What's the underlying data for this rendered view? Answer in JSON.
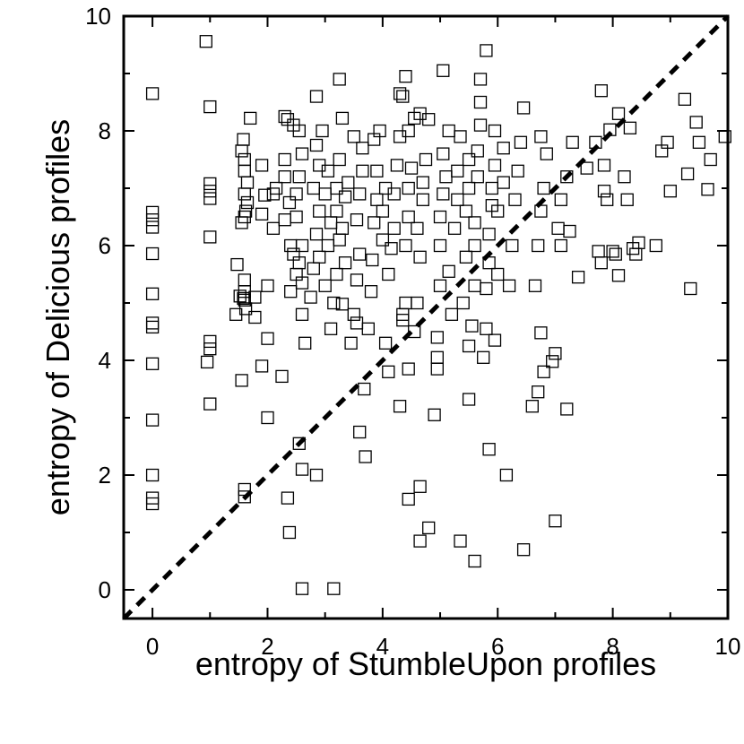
{
  "chart_data": {
    "type": "scatter",
    "title": "",
    "xlabel": "entropy of StumbleUpon profiles",
    "ylabel": "entropy of Delicious profiles",
    "xlim": [
      -0.5,
      10
    ],
    "ylim": [
      -0.5,
      10
    ],
    "xticks": [
      "0",
      "2",
      "4",
      "6",
      "8",
      "10"
    ],
    "yticks": [
      "0",
      "2",
      "4",
      "6",
      "8",
      "10"
    ],
    "xtick_values": [
      0,
      2,
      4,
      6,
      8,
      10
    ],
    "ytick_values": [
      0,
      2,
      4,
      6,
      8,
      10
    ],
    "marker": "open-square",
    "reference_line": {
      "style": "dashed",
      "from": [
        -0.5,
        -0.5
      ],
      "to": [
        10,
        10
      ]
    },
    "grid": false,
    "points": [
      [
        0,
        8.65
      ],
      [
        0,
        6.58
      ],
      [
        0,
        6.45
      ],
      [
        0,
        6.32
      ],
      [
        0,
        5.86
      ],
      [
        0,
        5.16
      ],
      [
        0,
        4.65
      ],
      [
        0,
        4.58
      ],
      [
        0,
        3.94
      ],
      [
        0,
        2.96
      ],
      [
        0,
        2.0
      ],
      [
        0,
        1.6
      ],
      [
        0,
        1.5
      ],
      [
        0.93,
        9.56
      ],
      [
        1,
        8.42
      ],
      [
        1,
        7.08
      ],
      [
        1,
        6.95
      ],
      [
        1,
        6.82
      ],
      [
        1,
        6.15
      ],
      [
        1,
        4.33
      ],
      [
        1,
        4.2
      ],
      [
        0.95,
        3.97
      ],
      [
        1,
        3.24
      ],
      [
        1.47,
        5.67
      ],
      [
        1.52,
        5.12
      ],
      [
        1.58,
        5.08
      ],
      [
        1.6,
        5.4
      ],
      [
        1.6,
        5.2
      ],
      [
        1.6,
        5.05
      ],
      [
        1.62,
        4.9
      ],
      [
        1.55,
        3.65
      ],
      [
        1.6,
        1.75
      ],
      [
        1.6,
        1.62
      ],
      [
        1.45,
        4.8
      ],
      [
        1.55,
        6.4
      ],
      [
        1.6,
        6.5
      ],
      [
        1.55,
        7.65
      ],
      [
        1.6,
        7.5
      ],
      [
        1.6,
        7.3
      ],
      [
        1.65,
        7.1
      ],
      [
        1.6,
        6.9
      ],
      [
        1.65,
        6.75
      ],
      [
        1.62,
        6.6
      ],
      [
        1.58,
        7.85
      ],
      [
        1.7,
        8.22
      ],
      [
        1.78,
        5.1
      ],
      [
        1.78,
        4.75
      ],
      [
        1.9,
        3.9
      ],
      [
        2.0,
        3.0
      ],
      [
        2.0,
        4.38
      ],
      [
        2.0,
        5.3
      ],
      [
        1.9,
        6.55
      ],
      [
        1.95,
        6.88
      ],
      [
        1.9,
        7.4
      ],
      [
        2.1,
        6.3
      ],
      [
        2.1,
        6.9
      ],
      [
        2.15,
        7.0
      ],
      [
        2.25,
        3.72
      ],
      [
        2.3,
        8.25
      ],
      [
        2.35,
        8.2
      ],
      [
        2.45,
        8.1
      ],
      [
        2.3,
        7.5
      ],
      [
        2.3,
        7.2
      ],
      [
        2.38,
        6.75
      ],
      [
        2.3,
        6.45
      ],
      [
        2.4,
        6.0
      ],
      [
        2.45,
        5.85
      ],
      [
        2.5,
        5.5
      ],
      [
        2.4,
        5.2
      ],
      [
        2.35,
        1.6
      ],
      [
        2.38,
        1.0
      ],
      [
        2.55,
        2.55
      ],
      [
        2.6,
        2.1
      ],
      [
        2.65,
        4.3
      ],
      [
        2.6,
        4.8
      ],
      [
        2.6,
        5.35
      ],
      [
        2.55,
        5.7
      ],
      [
        2.6,
        6.0
      ],
      [
        2.5,
        6.5
      ],
      [
        2.5,
        6.9
      ],
      [
        2.55,
        7.2
      ],
      [
        2.6,
        7.6
      ],
      [
        2.55,
        8.0
      ],
      [
        2.85,
        8.6
      ],
      [
        2.6,
        0.02
      ],
      [
        2.85,
        2.0
      ],
      [
        2.75,
        5.1
      ],
      [
        2.8,
        5.6
      ],
      [
        2.9,
        5.8
      ],
      [
        2.85,
        6.2
      ],
      [
        2.9,
        6.6
      ],
      [
        2.8,
        7.0
      ],
      [
        2.9,
        7.4
      ],
      [
        2.85,
        7.75
      ],
      [
        2.95,
        8.0
      ],
      [
        3.0,
        5.3
      ],
      [
        3.05,
        6.0
      ],
      [
        3.1,
        6.4
      ],
      [
        3.0,
        6.9
      ],
      [
        3.05,
        7.3
      ],
      [
        3.1,
        4.55
      ],
      [
        3.15,
        5.0
      ],
      [
        3.2,
        5.5
      ],
      [
        3.25,
        6.1
      ],
      [
        3.2,
        6.6
      ],
      [
        3.2,
        7.0
      ],
      [
        3.25,
        7.5
      ],
      [
        3.3,
        8.22
      ],
      [
        3.25,
        8.9
      ],
      [
        3.15,
        0.02
      ],
      [
        3.3,
        4.98
      ],
      [
        3.35,
        5.7
      ],
      [
        3.3,
        6.3
      ],
      [
        3.35,
        6.85
      ],
      [
        3.4,
        7.1
      ],
      [
        3.5,
        7.9
      ],
      [
        3.45,
        4.3
      ],
      [
        3.55,
        4.65
      ],
      [
        3.5,
        4.8
      ],
      [
        3.55,
        5.4
      ],
      [
        3.6,
        5.85
      ],
      [
        3.55,
        6.45
      ],
      [
        3.6,
        6.9
      ],
      [
        3.65,
        7.3
      ],
      [
        3.65,
        7.7
      ],
      [
        3.6,
        2.75
      ],
      [
        3.68,
        3.5
      ],
      [
        3.7,
        2.32
      ],
      [
        3.75,
        4.55
      ],
      [
        3.8,
        5.2
      ],
      [
        3.82,
        5.75
      ],
      [
        3.85,
        6.4
      ],
      [
        3.9,
        6.8
      ],
      [
        3.9,
        7.3
      ],
      [
        3.85,
        7.85
      ],
      [
        3.95,
        8.0
      ],
      [
        4.0,
        6.1
      ],
      [
        4.0,
        6.6
      ],
      [
        4.05,
        7.0
      ],
      [
        4.05,
        4.3
      ],
      [
        4.1,
        5.5
      ],
      [
        4.15,
        5.95
      ],
      [
        4.2,
        6.3
      ],
      [
        4.2,
        6.9
      ],
      [
        4.25,
        7.4
      ],
      [
        4.3,
        7.9
      ],
      [
        4.1,
        3.8
      ],
      [
        4.3,
        3.2
      ],
      [
        4.35,
        4.8
      ],
      [
        4.35,
        4.7
      ],
      [
        4.4,
        5.0
      ],
      [
        4.4,
        6.0
      ],
      [
        4.45,
        6.5
      ],
      [
        4.45,
        7.0
      ],
      [
        4.5,
        7.35
      ],
      [
        4.45,
        8.0
      ],
      [
        4.55,
        8.22
      ],
      [
        4.3,
        8.65
      ],
      [
        4.35,
        8.6
      ],
      [
        4.4,
        8.95
      ],
      [
        4.45,
        1.58
      ],
      [
        4.45,
        3.85
      ],
      [
        4.55,
        4.5
      ],
      [
        4.6,
        5.0
      ],
      [
        4.65,
        5.8
      ],
      [
        4.6,
        6.3
      ],
      [
        4.7,
        6.8
      ],
      [
        4.7,
        7.1
      ],
      [
        4.75,
        7.5
      ],
      [
        4.65,
        8.3
      ],
      [
        4.8,
        8.2
      ],
      [
        4.65,
        1.8
      ],
      [
        4.65,
        0.85
      ],
      [
        4.8,
        1.08
      ],
      [
        4.9,
        3.05
      ],
      [
        4.95,
        3.85
      ],
      [
        4.95,
        4.05
      ],
      [
        4.95,
        4.4
      ],
      [
        5.0,
        5.3
      ],
      [
        5.0,
        6.0
      ],
      [
        5.0,
        6.5
      ],
      [
        5.05,
        6.9
      ],
      [
        5.1,
        7.2
      ],
      [
        5.05,
        7.6
      ],
      [
        5.15,
        8.0
      ],
      [
        5.05,
        9.05
      ],
      [
        5.15,
        5.55
      ],
      [
        5.2,
        4.8
      ],
      [
        5.25,
        6.3
      ],
      [
        5.3,
        6.8
      ],
      [
        5.3,
        7.3
      ],
      [
        5.35,
        7.9
      ],
      [
        5.4,
        5.0
      ],
      [
        5.45,
        5.8
      ],
      [
        5.45,
        6.6
      ],
      [
        5.5,
        7.0
      ],
      [
        5.5,
        7.5
      ],
      [
        5.35,
        0.85
      ],
      [
        5.5,
        3.32
      ],
      [
        5.5,
        4.25
      ],
      [
        5.55,
        4.6
      ],
      [
        5.6,
        5.3
      ],
      [
        5.6,
        6.0
      ],
      [
        5.6,
        6.4
      ],
      [
        5.65,
        7.2
      ],
      [
        5.65,
        7.65
      ],
      [
        5.7,
        8.1
      ],
      [
        5.7,
        8.5
      ],
      [
        5.7,
        8.9
      ],
      [
        5.8,
        9.4
      ],
      [
        5.6,
        0.5
      ],
      [
        5.75,
        4.05
      ],
      [
        5.8,
        4.55
      ],
      [
        5.8,
        5.25
      ],
      [
        5.85,
        5.7
      ],
      [
        5.85,
        6.2
      ],
      [
        5.9,
        6.7
      ],
      [
        5.9,
        7.0
      ],
      [
        5.95,
        7.4
      ],
      [
        5.95,
        8.0
      ],
      [
        5.85,
        2.45
      ],
      [
        5.95,
        4.35
      ],
      [
        6.0,
        5.5
      ],
      [
        6.0,
        6.6
      ],
      [
        6.1,
        7.1
      ],
      [
        6.1,
        7.7
      ],
      [
        6.15,
        2.0
      ],
      [
        6.2,
        5.3
      ],
      [
        6.25,
        6.0
      ],
      [
        6.3,
        6.8
      ],
      [
        6.35,
        7.3
      ],
      [
        6.4,
        7.8
      ],
      [
        6.45,
        8.4
      ],
      [
        6.45,
        0.7
      ],
      [
        6.6,
        3.2
      ],
      [
        6.65,
        5.3
      ],
      [
        6.7,
        6.0
      ],
      [
        6.75,
        6.6
      ],
      [
        6.8,
        7.0
      ],
      [
        6.85,
        7.6
      ],
      [
        6.75,
        7.9
      ],
      [
        6.7,
        3.45
      ],
      [
        6.8,
        3.8
      ],
      [
        6.75,
        4.48
      ],
      [
        6.95,
        3.98
      ],
      [
        7.0,
        4.12
      ],
      [
        7.0,
        1.2
      ],
      [
        7.05,
        6.3
      ],
      [
        7.1,
        6.8
      ],
      [
        7.1,
        6.0
      ],
      [
        7.2,
        7.2
      ],
      [
        7.2,
        3.15
      ],
      [
        7.25,
        6.25
      ],
      [
        7.3,
        7.8
      ],
      [
        7.4,
        5.45
      ],
      [
        7.55,
        7.35
      ],
      [
        7.7,
        7.8
      ],
      [
        7.8,
        8.7
      ],
      [
        7.75,
        5.9
      ],
      [
        7.8,
        5.7
      ],
      [
        7.85,
        7.4
      ],
      [
        7.85,
        6.95
      ],
      [
        7.9,
        6.8
      ],
      [
        7.95,
        8.02
      ],
      [
        8.0,
        5.9
      ],
      [
        8.05,
        5.85
      ],
      [
        8.1,
        8.3
      ],
      [
        8.1,
        5.48
      ],
      [
        8.2,
        7.2
      ],
      [
        8.25,
        6.8
      ],
      [
        8.3,
        8.05
      ],
      [
        8.35,
        5.95
      ],
      [
        8.4,
        5.85
      ],
      [
        8.45,
        6.05
      ],
      [
        8.75,
        6.0
      ],
      [
        8.85,
        7.65
      ],
      [
        8.95,
        7.8
      ],
      [
        9.0,
        6.95
      ],
      [
        9.25,
        8.55
      ],
      [
        9.3,
        7.25
      ],
      [
        9.35,
        5.25
      ],
      [
        9.45,
        8.15
      ],
      [
        9.5,
        7.8
      ],
      [
        9.65,
        6.98
      ],
      [
        9.7,
        7.5
      ],
      [
        9.95,
        7.9
      ]
    ]
  }
}
